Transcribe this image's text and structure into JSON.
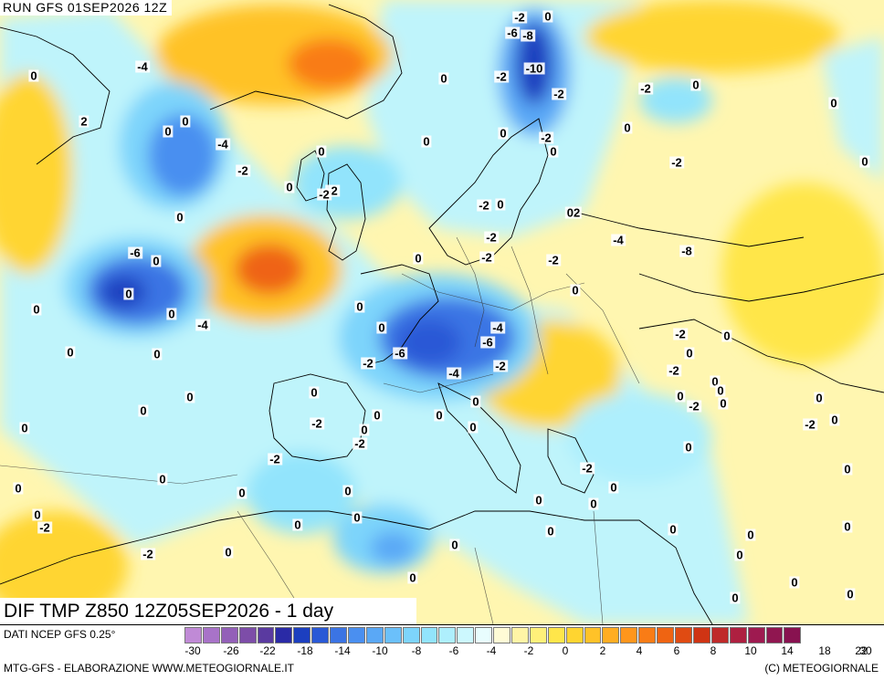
{
  "header": {
    "run": "RUN GFS 01SEP2026 12Z"
  },
  "field_title": "DIF TMP Z850 12Z05SEP2026 - 1 day",
  "source": "DATI NCEP GFS 0.25°",
  "footer": {
    "left": "MTG-GFS - ELABORAZIONE WWW.METEOGIORNALE.IT",
    "right": "(C) METEOGIORNALE"
  },
  "legend": {
    "colors": [
      "#c08ad6",
      "#a873c8",
      "#9360b8",
      "#7d4da8",
      "#5a3aa0",
      "#2a2aa6",
      "#1c3fbf",
      "#2a59d6",
      "#3b74e4",
      "#4a8ff0",
      "#5aa8f6",
      "#6bc0fa",
      "#7dd4fb",
      "#92e4fc",
      "#aeeffd",
      "#ccf8fe",
      "#e8fdfe",
      "#fffbd6",
      "#fff5a6",
      "#fff07a",
      "#ffe64a",
      "#ffd530",
      "#ffc228",
      "#ffad22",
      "#ff961c",
      "#f97c16",
      "#ef6412",
      "#e04b12",
      "#cf3414",
      "#bf2a2a",
      "#ae2040",
      "#9e1a50",
      "#901650",
      "#881250"
    ],
    "ticks": [
      "-30",
      "-26",
      "-22",
      "-18",
      "-14",
      "-10",
      "-8",
      "-6",
      "-4",
      "-2",
      "0",
      "2",
      "4",
      "6",
      "8",
      "10",
      "14",
      "18",
      "22",
      "30"
    ]
  },
  "contour_labels": [
    "-2",
    "0",
    "-6",
    "-8",
    "-2",
    "-10",
    "0",
    "-2",
    "-2",
    "0",
    "-4",
    "0",
    "2",
    "0",
    "0",
    "-4",
    "-2",
    "0",
    "-2",
    "0",
    "-2",
    "-2",
    "0",
    "0",
    "0",
    "-2",
    "0",
    "0",
    "0",
    "0",
    "0",
    "-2",
    "-2",
    "-2",
    "-2",
    "0",
    "02",
    "-4",
    "-8",
    "-6",
    "0",
    "0",
    "0",
    "0",
    "-4",
    "0",
    "-4",
    "-6",
    "-6",
    "-2",
    "-4",
    "-2",
    "0",
    "0",
    "-2",
    "0",
    "0",
    "0",
    "0",
    "0",
    "-2",
    "0",
    "0",
    "0",
    "0",
    "-2",
    "0",
    "0",
    "0",
    "0",
    "0",
    "-2",
    "0",
    "0",
    "0",
    "0",
    "-2",
    "-2",
    "-2",
    "0",
    "0",
    "0",
    "0",
    "0",
    "-2",
    "0",
    "0",
    "0",
    "0",
    "0",
    "0",
    "0",
    "-2",
    "0",
    "0",
    "0",
    "0",
    "0",
    "0",
    "0",
    "-2",
    "0",
    "0",
    "0",
    "0",
    "0"
  ]
}
